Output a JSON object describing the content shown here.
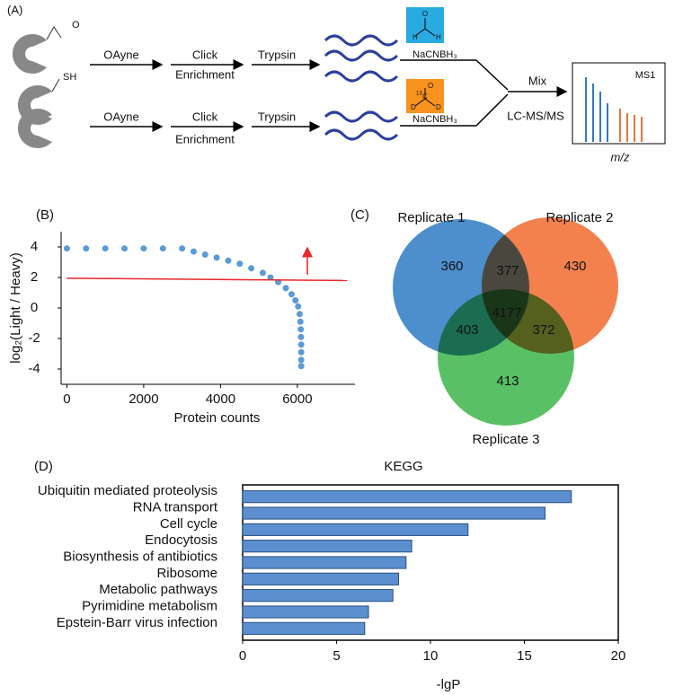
{
  "diagram": {
    "label": "(A)",
    "aldehyde": "O",
    "thiol": "SH",
    "row1": {
      "reagent": "OAyne",
      "step": "Click",
      "step_sub": "Enrichment",
      "digest": "Trypsin",
      "label_atoms": [
        "H",
        "O",
        "H"
      ],
      "reductant": "NaCNBH₃"
    },
    "row2": {
      "reagent": "OAyne",
      "step": "Click",
      "step_sub": "Enrichment",
      "digest": "Trypsin",
      "label_atoms": [
        "D",
        "13",
        "C",
        "O",
        "D"
      ],
      "reductant": "NaCNBH₃"
    },
    "mix": "Mix",
    "instrument": "LC-MS/MS",
    "spectrum": "MS1",
    "spectrum_axis": "m/z"
  },
  "chart_data": [
    {
      "type": "scatter",
      "label": "(B)",
      "xlabel": "Protein counts",
      "ylabel": "log₂(Light / Heavy)",
      "xlim": [
        -150,
        7500
      ],
      "ylim": [
        -5,
        5
      ],
      "xticks": [
        0,
        2000,
        4000,
        6000
      ],
      "yticks": [
        -4,
        -2,
        0,
        2,
        4
      ],
      "series": [
        {
          "color": "#5b9bd5",
          "x": [
            0,
            500,
            1000,
            1500,
            2000,
            2500,
            3000,
            3300,
            3600,
            3900,
            4200,
            4500,
            4800,
            5100,
            5300,
            5500,
            5700,
            5850,
            5950,
            6020,
            6060,
            6080,
            6090,
            6095,
            6100,
            6100,
            6100,
            6100
          ],
          "y": [
            3.9,
            3.9,
            3.9,
            3.9,
            3.9,
            3.9,
            3.9,
            3.7,
            3.5,
            3.3,
            3.1,
            2.9,
            2.6,
            2.3,
            2.0,
            1.7,
            1.3,
            0.9,
            0.5,
            0.1,
            -0.4,
            -0.9,
            -1.4,
            -1.9,
            -2.4,
            -2.9,
            -3.4,
            -3.8
          ]
        },
        {
          "color": "#e8262b",
          "x": [
            0,
            7300
          ],
          "y": [
            1.95,
            1.8
          ]
        }
      ]
    },
    {
      "type": "venn",
      "label": "(C)",
      "sets": [
        {
          "name": "Replicate 1",
          "color": "#2e7bc4"
        },
        {
          "name": "Replicate 2",
          "color": "#f26a2e"
        },
        {
          "name": "Replicate 3",
          "color": "#3cb54a"
        }
      ],
      "values": [
        360,
        430,
        413,
        377,
        403,
        372,
        4177
      ]
    },
    {
      "type": "bar",
      "label": "(D)",
      "title": "KEGG",
      "xlabel": "-lgP",
      "color": "#5b8fcf",
      "categories": [
        "Ubiquitin mediated proteolysis",
        "RNA transport",
        "Cell cycle",
        "Endocytosis",
        "Biosynthesis of antibiotics",
        "Ribosome",
        "Metabolic pathways",
        "Pyrimidine metabolism",
        "Epstein-Barr virus infection"
      ],
      "values": [
        17.5,
        16.1,
        12.0,
        9.0,
        8.7,
        8.3,
        8.0,
        6.7,
        6.5
      ],
      "xlim": [
        0,
        20
      ],
      "xticks": [
        0,
        5,
        10,
        15,
        20
      ]
    }
  ]
}
